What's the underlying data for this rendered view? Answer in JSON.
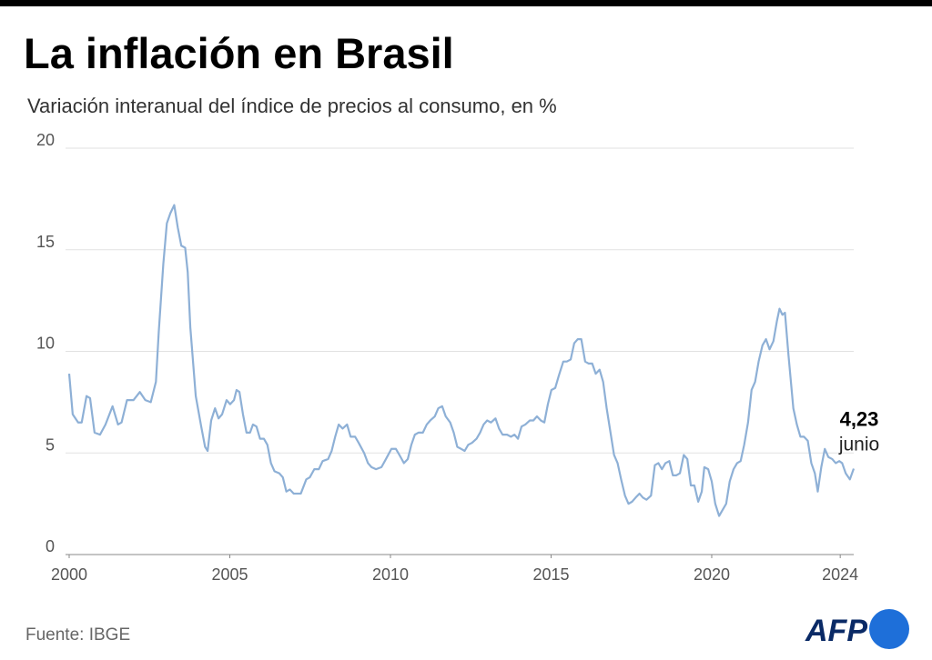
{
  "chart_data": {
    "type": "line",
    "title": "La inflación en Brasil",
    "subtitle": "Variación interanual del índice de precios al consumo, en %",
    "source": "Fuente: IBGE",
    "logo": "AFP",
    "end_label": "4,23",
    "end_note": "junio",
    "color": "#8eb0d6",
    "grid": true,
    "xlim": [
      2000,
      2024.42
    ],
    "xticks": [
      2000,
      2005,
      2010,
      2015,
      2020,
      2024
    ],
    "ylim": [
      0,
      20
    ],
    "yticks": [
      0,
      5,
      10,
      15,
      20
    ],
    "x": [
      2000,
      2000.11,
      2000.28,
      2000.39,
      2000.54,
      2000.65,
      2000.79,
      2000.96,
      2001.13,
      2001.35,
      2001.52,
      2001.63,
      2001.8,
      2002.0,
      2002.2,
      2002.37,
      2002.54,
      2002.7,
      2002.79,
      2002.93,
      2003.04,
      2003.15,
      2003.27,
      2003.38,
      2003.49,
      2003.61,
      2003.69,
      2003.77,
      2003.94,
      2004.11,
      2004.23,
      2004.31,
      2004.42,
      2004.54,
      2004.65,
      2004.76,
      2004.9,
      2005.01,
      2005.13,
      2005.21,
      2005.3,
      2005.41,
      2005.52,
      2005.63,
      2005.72,
      2005.83,
      2005.94,
      2006.06,
      2006.17,
      2006.28,
      2006.39,
      2006.54,
      2006.65,
      2006.76,
      2006.87,
      2006.99,
      2007.1,
      2007.21,
      2007.38,
      2007.49,
      2007.63,
      2007.77,
      2007.89,
      2008.06,
      2008.17,
      2008.28,
      2008.39,
      2008.51,
      2008.65,
      2008.76,
      2008.9,
      2009.01,
      2009.18,
      2009.3,
      2009.41,
      2009.55,
      2009.72,
      2009.86,
      2010.03,
      2010.17,
      2010.28,
      2010.42,
      2010.54,
      2010.65,
      2010.76,
      2010.87,
      2011.01,
      2011.13,
      2011.24,
      2011.38,
      2011.49,
      2011.61,
      2011.72,
      2011.86,
      2011.97,
      2012.08,
      2012.2,
      2012.31,
      2012.42,
      2012.54,
      2012.68,
      2012.79,
      2012.9,
      2013.01,
      2013.13,
      2013.27,
      2013.38,
      2013.49,
      2013.63,
      2013.75,
      2013.86,
      2013.97,
      2014.08,
      2014.2,
      2014.34,
      2014.45,
      2014.56,
      2014.68,
      2014.79,
      2014.9,
      2015.01,
      2015.13,
      2015.24,
      2015.38,
      2015.49,
      2015.61,
      2015.72,
      2015.83,
      2015.94,
      2016.06,
      2016.17,
      2016.28,
      2016.39,
      2016.51,
      2016.62,
      2016.73,
      2016.85,
      2016.96,
      2017.07,
      2017.18,
      2017.3,
      2017.41,
      2017.52,
      2017.63,
      2017.75,
      2017.86,
      2017.97,
      2018.11,
      2018.23,
      2018.34,
      2018.45,
      2018.56,
      2018.68,
      2018.79,
      2018.9,
      2019.01,
      2019.13,
      2019.24,
      2019.35,
      2019.46,
      2019.58,
      2019.69,
      2019.77,
      2019.89,
      2020.0,
      2020.11,
      2020.23,
      2020.34,
      2020.45,
      2020.56,
      2020.68,
      2020.79,
      2020.9,
      2021.01,
      2021.13,
      2021.24,
      2021.35,
      2021.46,
      2021.58,
      2021.69,
      2021.8,
      2021.92,
      2022.03,
      2022.11,
      2022.2,
      2022.28,
      2022.39,
      2022.54,
      2022.65,
      2022.76,
      2022.87,
      2022.99,
      2023.1,
      2023.21,
      2023.3,
      2023.41,
      2023.52,
      2023.63,
      2023.75,
      2023.86,
      2023.97,
      2024.06,
      2024.17,
      2024.3,
      2024.42
    ],
    "values": [
      8.9,
      6.9,
      6.5,
      6.5,
      7.8,
      7.7,
      6.0,
      5.9,
      6.4,
      7.3,
      6.4,
      6.5,
      7.6,
      7.6,
      8.0,
      7.6,
      7.5,
      8.5,
      11.0,
      14.3,
      16.3,
      16.8,
      17.2,
      16.1,
      15.2,
      15.1,
      13.9,
      11.2,
      7.8,
      6.3,
      5.3,
      5.1,
      6.6,
      7.2,
      6.7,
      6.9,
      7.6,
      7.4,
      7.6,
      8.1,
      8.0,
      6.9,
      6.0,
      6.0,
      6.4,
      6.3,
      5.7,
      5.7,
      5.4,
      4.5,
      4.1,
      4.0,
      3.8,
      3.1,
      3.2,
      3.0,
      3.0,
      3.0,
      3.7,
      3.8,
      4.2,
      4.2,
      4.6,
      4.7,
      5.1,
      5.8,
      6.4,
      6.2,
      6.4,
      5.8,
      5.8,
      5.5,
      5.0,
      4.5,
      4.3,
      4.2,
      4.3,
      4.7,
      5.2,
      5.2,
      4.9,
      4.5,
      4.7,
      5.4,
      5.9,
      6.0,
      6.0,
      6.4,
      6.6,
      6.8,
      7.2,
      7.3,
      6.8,
      6.5,
      6.0,
      5.3,
      5.2,
      5.1,
      5.4,
      5.5,
      5.7,
      6.0,
      6.4,
      6.6,
      6.5,
      6.7,
      6.2,
      5.9,
      5.9,
      5.8,
      5.9,
      5.7,
      6.3,
      6.4,
      6.6,
      6.6,
      6.8,
      6.6,
      6.5,
      7.4,
      8.1,
      8.2,
      8.8,
      9.5,
      9.5,
      9.6,
      10.4,
      10.6,
      10.6,
      9.5,
      9.4,
      9.4,
      8.9,
      9.1,
      8.5,
      7.2,
      6.0,
      4.9,
      4.5,
      3.7,
      2.9,
      2.5,
      2.6,
      2.8,
      3.0,
      2.8,
      2.7,
      2.9,
      4.4,
      4.5,
      4.2,
      4.5,
      4.6,
      3.9,
      3.9,
      4.0,
      4.9,
      4.7,
      3.4,
      3.4,
      2.6,
      3.1,
      4.3,
      4.2,
      3.6,
      2.5,
      1.9,
      2.2,
      2.5,
      3.6,
      4.2,
      4.5,
      4.6,
      5.4,
      6.5,
      8.1,
      8.5,
      9.5,
      10.3,
      10.6,
      10.1,
      10.5,
      11.5,
      12.1,
      11.8,
      11.9,
      9.8,
      7.2,
      6.4,
      5.8,
      5.8,
      5.6,
      4.5,
      4.0,
      3.1,
      4.3,
      5.2,
      4.8,
      4.7,
      4.5,
      4.6,
      4.5,
      4.0,
      3.7,
      4.23
    ]
  }
}
